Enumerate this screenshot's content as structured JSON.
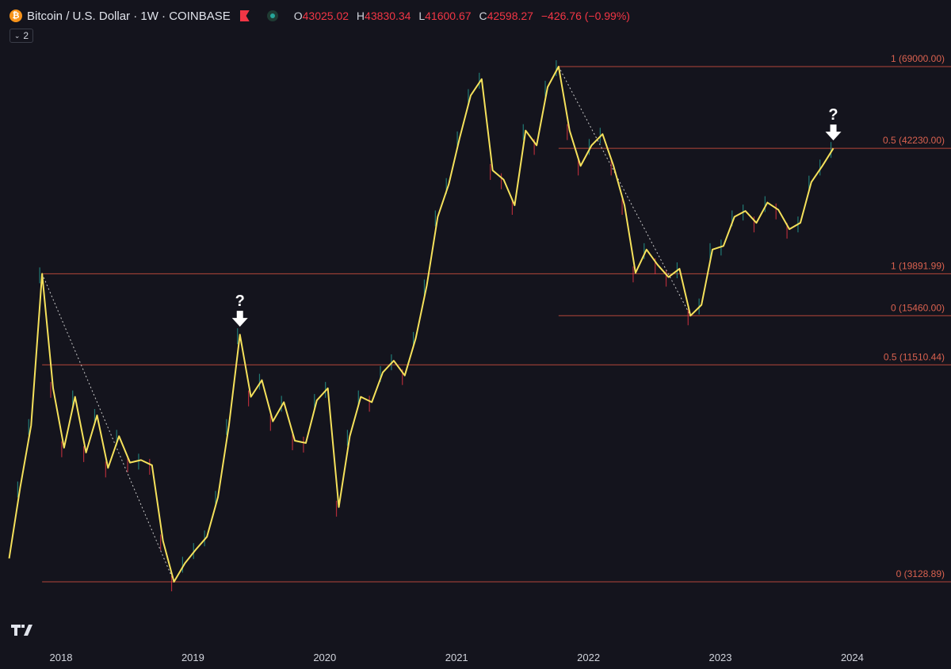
{
  "header": {
    "symbol": "Bitcoin / U.S. Dollar · 1W · COINBASE",
    "btc_icon": "bitcoin-icon",
    "ohlc": [
      {
        "key": "O",
        "value": "43025.02"
      },
      {
        "key": "H",
        "value": "43830.34"
      },
      {
        "key": "L",
        "value": "41600.67"
      },
      {
        "key": "C",
        "value": "42598.27"
      }
    ],
    "change": "−426.76 (−0.99%)",
    "legend_count": "2",
    "colors": {
      "up": "#26a69a",
      "down": "#f23645",
      "accent": "#f7931a"
    }
  },
  "chart_data": {
    "type": "line",
    "title": "Bitcoin / U.S. Dollar · 1W · COINBASE",
    "xlabel": "",
    "ylabel": "",
    "x_ticks": [
      "2018",
      "2019",
      "2020",
      "2021",
      "2022",
      "2023",
      "2024"
    ],
    "y_scale": "log",
    "grid": false,
    "series": [
      {
        "name": "",
        "color": "#f5e15b",
        "points": [
          [
            "2017-09",
            3600
          ],
          [
            "2017-10",
            5500
          ],
          [
            "2017-11",
            8000
          ],
          [
            "2017-12",
            19891.99
          ],
          [
            "2018-01",
            10000
          ],
          [
            "2018-02",
            7000
          ],
          [
            "2018-03",
            9500
          ],
          [
            "2018-04",
            6800
          ],
          [
            "2018-05",
            8500
          ],
          [
            "2018-06",
            6200
          ],
          [
            "2018-07",
            7500
          ],
          [
            "2018-08",
            6400
          ],
          [
            "2018-09",
            6500
          ],
          [
            "2018-10",
            6300
          ],
          [
            "2018-11",
            4000
          ],
          [
            "2018-12",
            3128.89
          ],
          [
            "2019-01",
            3500
          ],
          [
            "2019-02",
            3800
          ],
          [
            "2019-03",
            4100
          ],
          [
            "2019-04",
            5200
          ],
          [
            "2019-05",
            8000
          ],
          [
            "2019-06",
            13800
          ],
          [
            "2019-07",
            9500
          ],
          [
            "2019-08",
            10500
          ],
          [
            "2019-09",
            8200
          ],
          [
            "2019-10",
            9200
          ],
          [
            "2019-11",
            7300
          ],
          [
            "2019-12",
            7200
          ],
          [
            "2020-01",
            9300
          ],
          [
            "2020-02",
            10000
          ],
          [
            "2020-03",
            4900
          ],
          [
            "2020-04",
            7500
          ],
          [
            "2020-05",
            9500
          ],
          [
            "2020-06",
            9200
          ],
          [
            "2020-07",
            11000
          ],
          [
            "2020-08",
            11800
          ],
          [
            "2020-09",
            10800
          ],
          [
            "2020-10",
            13500
          ],
          [
            "2020-11",
            18500
          ],
          [
            "2020-12",
            28000
          ],
          [
            "2021-01",
            34000
          ],
          [
            "2021-02",
            45000
          ],
          [
            "2021-03",
            58000
          ],
          [
            "2021-04",
            64000
          ],
          [
            "2021-05",
            37000
          ],
          [
            "2021-06",
            35000
          ],
          [
            "2021-07",
            30000
          ],
          [
            "2021-08",
            47000
          ],
          [
            "2021-09",
            43000
          ],
          [
            "2021-10",
            61000
          ],
          [
            "2021-11",
            69000
          ],
          [
            "2021-12",
            47000
          ],
          [
            "2022-01",
            38000
          ],
          [
            "2022-02",
            43000
          ],
          [
            "2022-03",
            46000
          ],
          [
            "2022-04",
            38000
          ],
          [
            "2022-05",
            30000
          ],
          [
            "2022-06",
            20000
          ],
          [
            "2022-07",
            23000
          ],
          [
            "2022-08",
            21000
          ],
          [
            "2022-09",
            19500
          ],
          [
            "2022-10",
            20500
          ],
          [
            "2022-11",
            15460
          ],
          [
            "2022-12",
            16500
          ],
          [
            "2023-01",
            23000
          ],
          [
            "2023-02",
            23500
          ],
          [
            "2023-03",
            28000
          ],
          [
            "2023-04",
            29000
          ],
          [
            "2023-05",
            27000
          ],
          [
            "2023-06",
            30500
          ],
          [
            "2023-07",
            29200
          ],
          [
            "2023-08",
            26000
          ],
          [
            "2023-09",
            27000
          ],
          [
            "2023-10",
            34500
          ],
          [
            "2023-11",
            38000
          ],
          [
            "2023-12",
            42230
          ]
        ]
      }
    ],
    "fib_levels": [
      {
        "label": "1 (69000.00)",
        "value": 69000,
        "from": "2021-11",
        "to": "2024-06"
      },
      {
        "label": "0.5 (42230.00)",
        "value": 42230,
        "from": "2021-11",
        "to": "2024-06"
      },
      {
        "label": "1 (19891.99)",
        "value": 19891.99,
        "from": "2017-12",
        "to": "2024-06"
      },
      {
        "label": "0 (15460.00)",
        "value": 15460,
        "from": "2021-11",
        "to": "2024-06"
      },
      {
        "label": "0.5 (11510.44)",
        "value": 11510.44,
        "from": "2017-12",
        "to": "2024-06"
      },
      {
        "label": "0 (3128.89)",
        "value": 3128.89,
        "from": "2017-12",
        "to": "2024-06"
      }
    ],
    "trend_lines": [
      {
        "from": [
          "2017-12",
          19891.99
        ],
        "to": [
          "2018-12",
          3128.89
        ]
      },
      {
        "from": [
          "2021-11",
          69000
        ],
        "to": [
          "2022-11",
          15460
        ]
      }
    ],
    "annotations": [
      {
        "text": "?",
        "at": [
          "2019-06",
          13800
        ],
        "icon": "arrow-down-icon"
      },
      {
        "text": "?",
        "at": [
          "2023-12",
          42230
        ],
        "icon": "arrow-down-icon"
      }
    ],
    "watermark": "tradingview-logo-icon"
  }
}
